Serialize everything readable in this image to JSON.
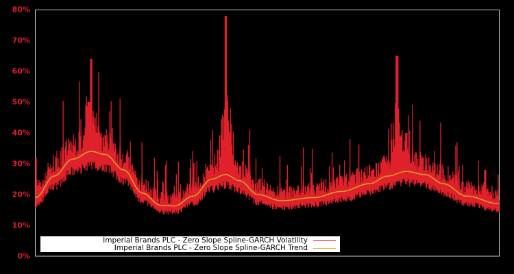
{
  "chart_data": {
    "type": "line",
    "title": "",
    "xlabel": "",
    "ylabel": "",
    "ylim": [
      0,
      80
    ],
    "y_ticks": [
      "0%",
      "10%",
      "20%",
      "30%",
      "40%",
      "50%",
      "60%",
      "70%",
      "80%"
    ],
    "x_ticks": [],
    "grid": false,
    "legend_position": "lower-left",
    "background": "#000000",
    "axis_color": "#cccccc",
    "tick_label_color": "#e0202a",
    "series": [
      {
        "name": "Imperial Brands PLC - Zero Slope Spline-GARCH Volatility",
        "color": "#e0202a",
        "description": "noisy daily volatility, peaks approx 64% (x~0.12), 78% (x~0.41), 65% (x~0.78)",
        "x": [
          0.0,
          0.02,
          0.05,
          0.08,
          0.1,
          0.115,
          0.12,
          0.13,
          0.15,
          0.18,
          0.22,
          0.26,
          0.3,
          0.34,
          0.37,
          0.39,
          0.41,
          0.42,
          0.44,
          0.47,
          0.52,
          0.58,
          0.64,
          0.7,
          0.75,
          0.77,
          0.78,
          0.8,
          0.82,
          0.86,
          0.9,
          0.95,
          0.97,
          0.98,
          1.0
        ],
        "values": [
          32,
          19,
          25,
          33,
          38,
          50,
          64,
          40,
          30,
          26,
          20,
          16,
          19,
          22,
          30,
          26,
          78,
          40,
          22,
          19,
          18,
          20,
          22,
          24,
          30,
          36,
          65,
          40,
          28,
          24,
          20,
          18,
          28,
          17,
          20
        ]
      },
      {
        "name": "Imperial Brands PLC - Zero Slope Spline-GARCH Trend",
        "color": "#d4a62a",
        "x": [
          0.0,
          0.04,
          0.08,
          0.12,
          0.15,
          0.19,
          0.23,
          0.27,
          0.3,
          0.34,
          0.38,
          0.41,
          0.44,
          0.48,
          0.53,
          0.6,
          0.66,
          0.72,
          0.76,
          0.8,
          0.84,
          0.88,
          0.93,
          1.0
        ],
        "values": [
          19,
          26,
          31.5,
          34,
          33,
          28,
          20.5,
          16.5,
          16.3,
          19.5,
          25,
          26.5,
          24.5,
          20,
          18,
          19,
          21,
          23.5,
          26,
          27.5,
          26.5,
          23.5,
          19.5,
          17
        ]
      }
    ]
  },
  "legend": {
    "items": [
      {
        "label": "Imperial Brands PLC - Zero Slope Spline-GARCH Volatility",
        "color": "#e0202a"
      },
      {
        "label": "Imperial Brands PLC - Zero Slope Spline-GARCH Trend",
        "color": "#d4a62a"
      }
    ]
  }
}
